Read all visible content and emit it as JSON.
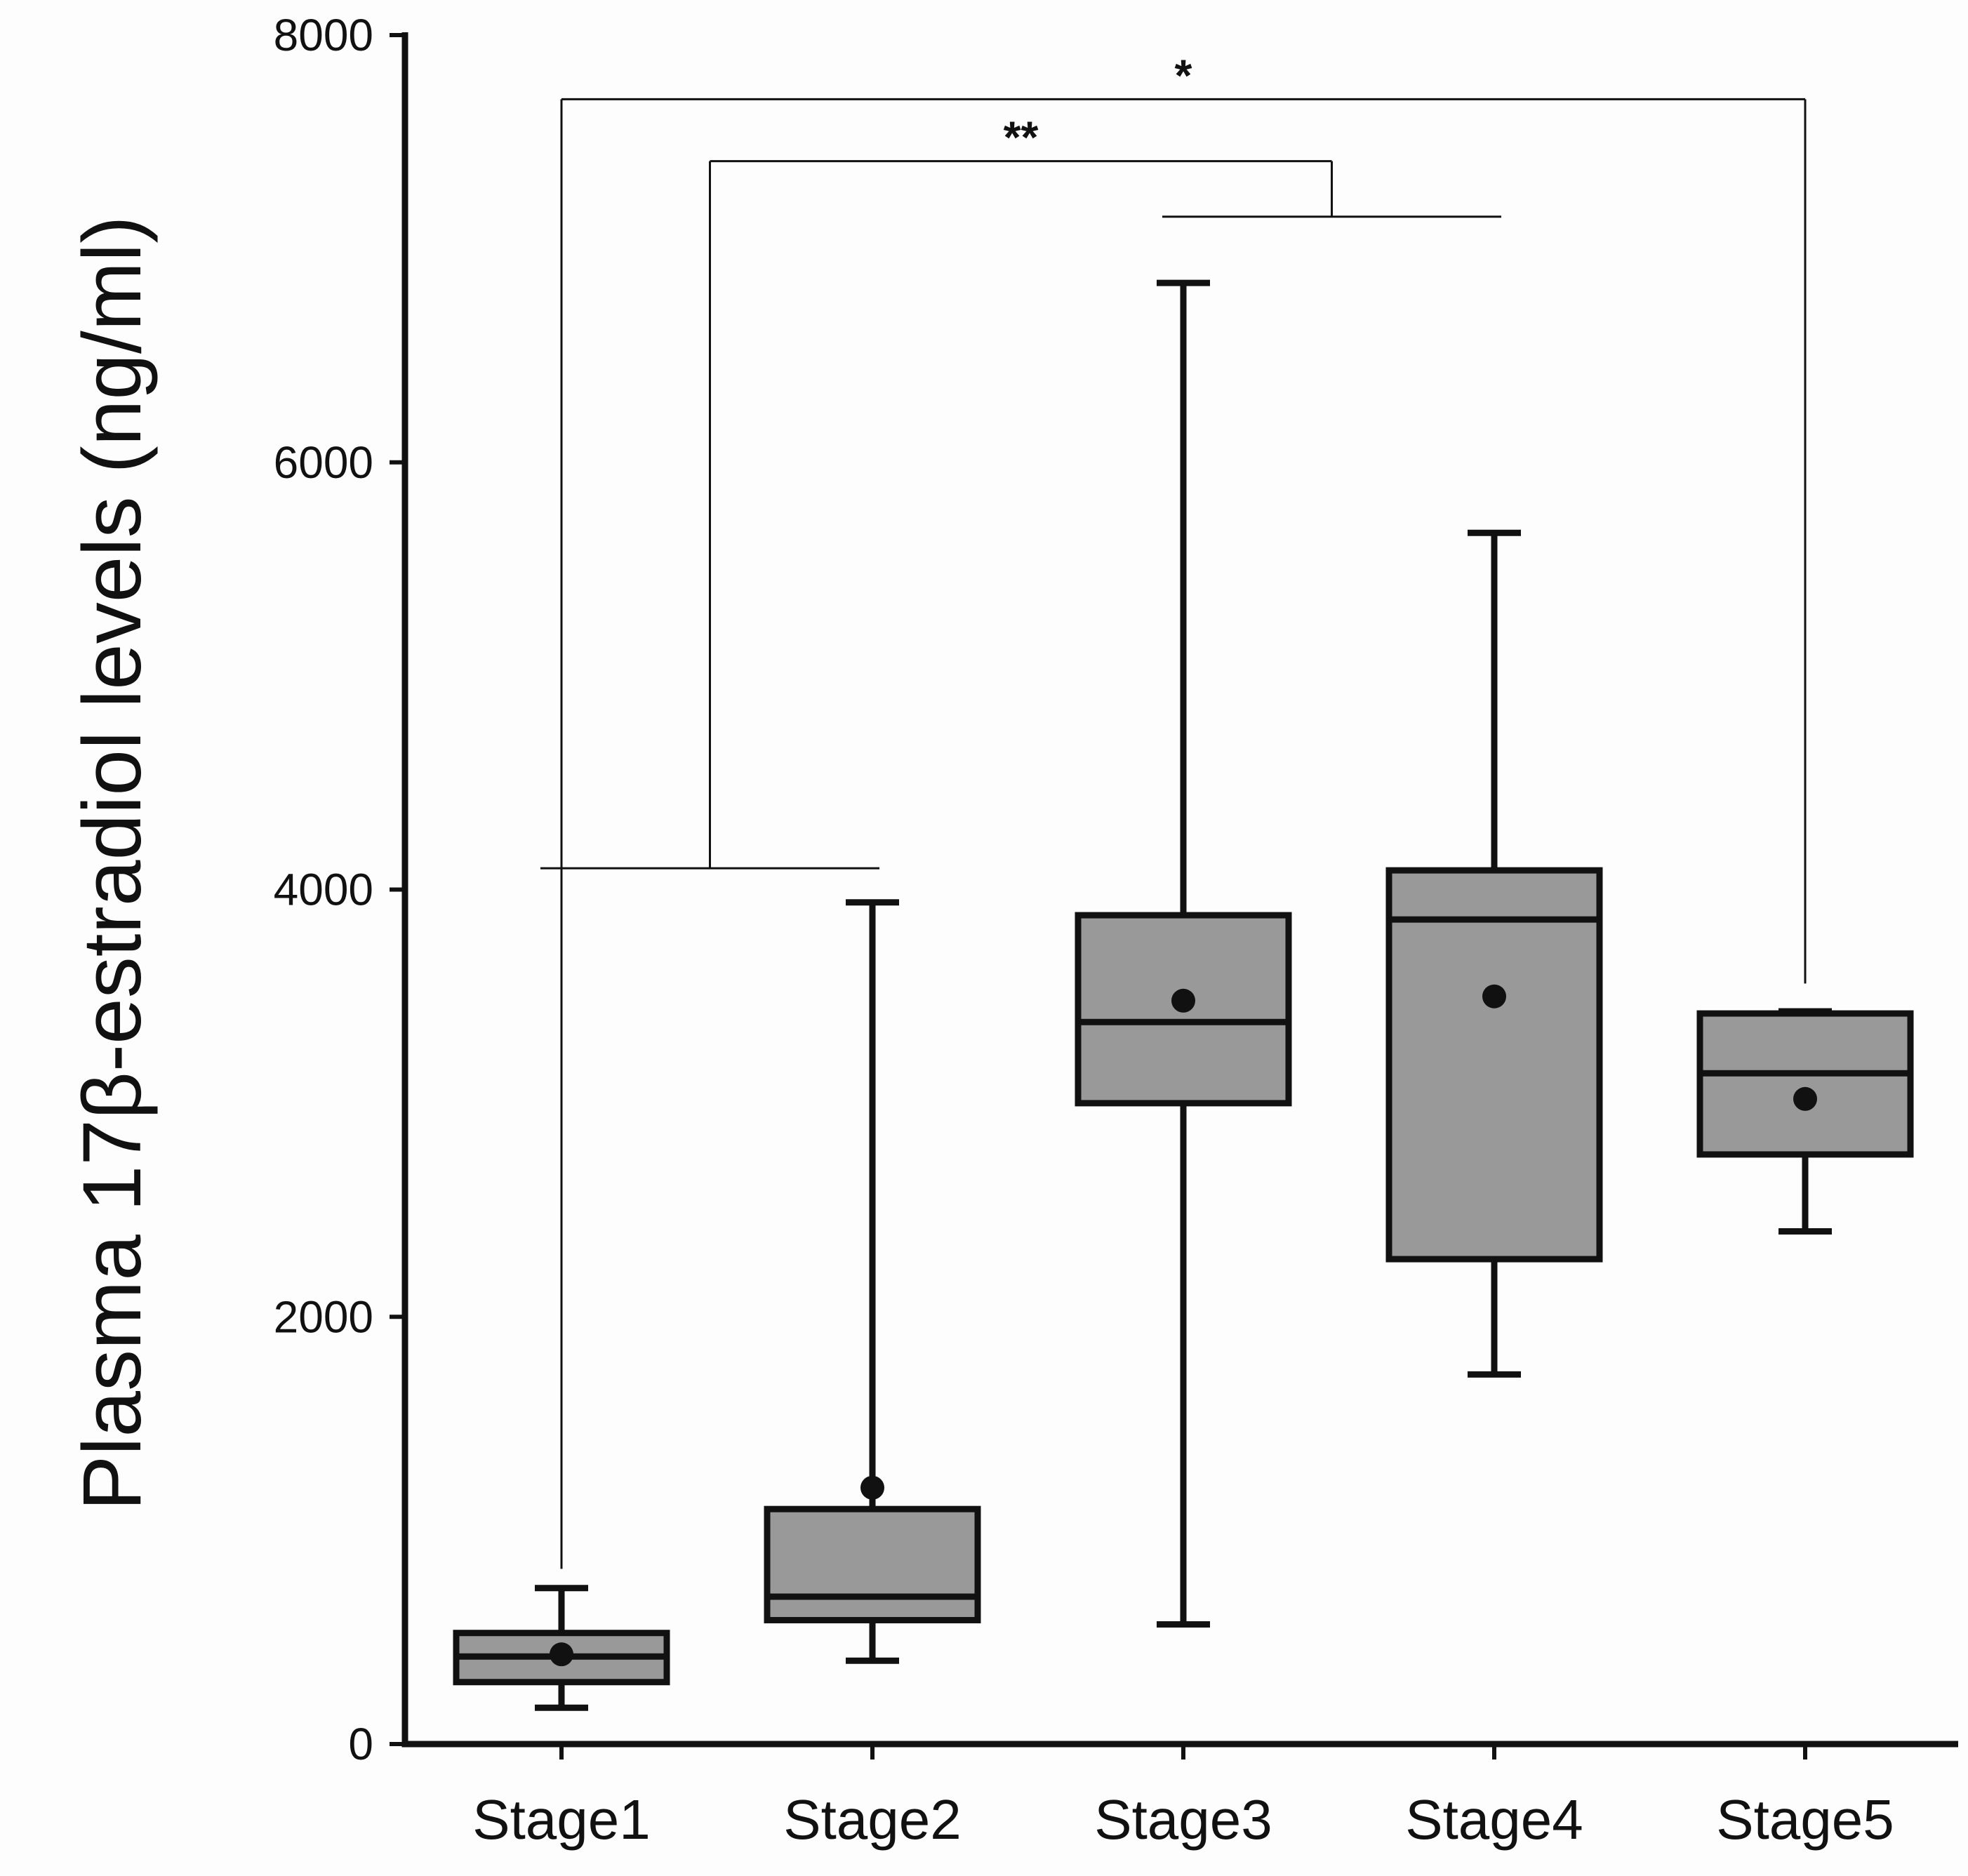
{
  "chart_data": {
    "type": "box",
    "title": "",
    "xlabel": "",
    "ylabel": "Plasma 17β-estradiol levels (ng/ml)",
    "ylim": [
      0,
      8000
    ],
    "yticks": [
      0,
      2000,
      4000,
      6000,
      8000
    ],
    "categories": [
      "Stage1",
      "Stage2",
      "Stage3",
      "Stage4",
      "Stage5"
    ],
    "boxes": [
      {
        "name": "Stage1",
        "whisker_low": 170,
        "q1": 290,
        "median": 410,
        "q3": 520,
        "whisker_high": 730,
        "mean": 420
      },
      {
        "name": "Stage2",
        "whisker_low": 390,
        "q1": 580,
        "median": 690,
        "q3": 1100,
        "whisker_high": 3940,
        "mean": 1200
      },
      {
        "name": "Stage3",
        "whisker_low": 560,
        "q1": 3000,
        "median": 3380,
        "q3": 3880,
        "whisker_high": 6840,
        "mean": 3480
      },
      {
        "name": "Stage4",
        "whisker_low": 1730,
        "q1": 2270,
        "median": 3860,
        "q3": 4090,
        "whisker_high": 5670,
        "mean": 3500
      },
      {
        "name": "Stage5",
        "whisker_low": 2400,
        "q1": 2760,
        "median": 3140,
        "q3": 3420,
        "whisker_high": 3430,
        "mean": 3020
      }
    ],
    "significance": [
      {
        "label": "**",
        "group_a": [
          "Stage1",
          "Stage2"
        ],
        "group_b": [
          "Stage3",
          "Stage4"
        ],
        "level": 7410,
        "group_a_top": 4100,
        "group_b_top": 7150
      },
      {
        "label": "*",
        "group_a": [
          "Stage1"
        ],
        "group_b": [
          "Stage5"
        ],
        "level": 7700,
        "group_a_top": 820,
        "group_b_top": 3560
      }
    ],
    "colors": {
      "box_fill": "#999999",
      "stroke": "#111111",
      "background": "#fdfdfd"
    }
  }
}
